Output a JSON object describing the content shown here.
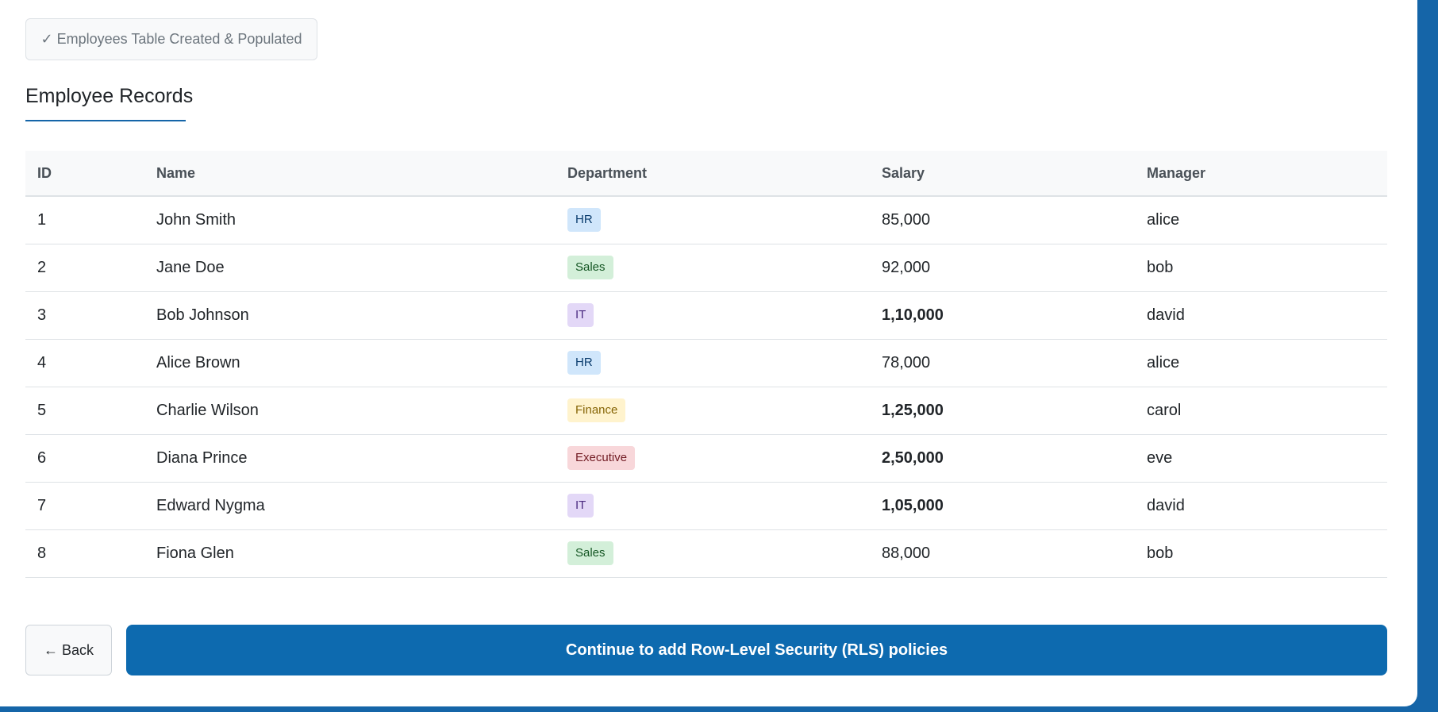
{
  "status": {
    "label": "✓ Employees Table Created & Populated"
  },
  "section": {
    "title": "Employee Records"
  },
  "table": {
    "headers": {
      "id": "ID",
      "name": "Name",
      "department": "Department",
      "salary": "Salary",
      "manager": "Manager"
    },
    "rows": [
      {
        "id": "1",
        "name": "John Smith",
        "department": "HR",
        "salary": "85,000",
        "manager": "alice"
      },
      {
        "id": "2",
        "name": "Jane Doe",
        "department": "Sales",
        "salary": "92,000",
        "manager": "bob"
      },
      {
        "id": "3",
        "name": "Bob Johnson",
        "department": "IT",
        "salary": "1,10,000",
        "manager": "david"
      },
      {
        "id": "4",
        "name": "Alice Brown",
        "department": "HR",
        "salary": "78,000",
        "manager": "alice"
      },
      {
        "id": "5",
        "name": "Charlie Wilson",
        "department": "Finance",
        "salary": "1,25,000",
        "manager": "carol"
      },
      {
        "id": "6",
        "name": "Diana Prince",
        "department": "Executive",
        "salary": "2,50,000",
        "manager": "eve"
      },
      {
        "id": "7",
        "name": "Edward Nygma",
        "department": "IT",
        "salary": "1,05,000",
        "manager": "david"
      },
      {
        "id": "8",
        "name": "Fiona Glen",
        "department": "Sales",
        "salary": "88,000",
        "manager": "bob"
      }
    ]
  },
  "department_colors": {
    "HR": {
      "bg": "#d0e6fb",
      "fg": "#0b3d6e"
    },
    "Sales": {
      "bg": "#d3efd9",
      "fg": "#155724"
    },
    "IT": {
      "bg": "#e3d8f7",
      "fg": "#4a2a80"
    },
    "Finance": {
      "bg": "#fff3cd",
      "fg": "#856404"
    },
    "Executive": {
      "bg": "#f8d7da",
      "fg": "#721c24"
    }
  },
  "buttons": {
    "back_label": "← Back",
    "continue_label": "Continue to add Row-Level Security (RLS) policies"
  },
  "colors": {
    "accent": "#0d6aaf",
    "frame": "#1565a8"
  }
}
